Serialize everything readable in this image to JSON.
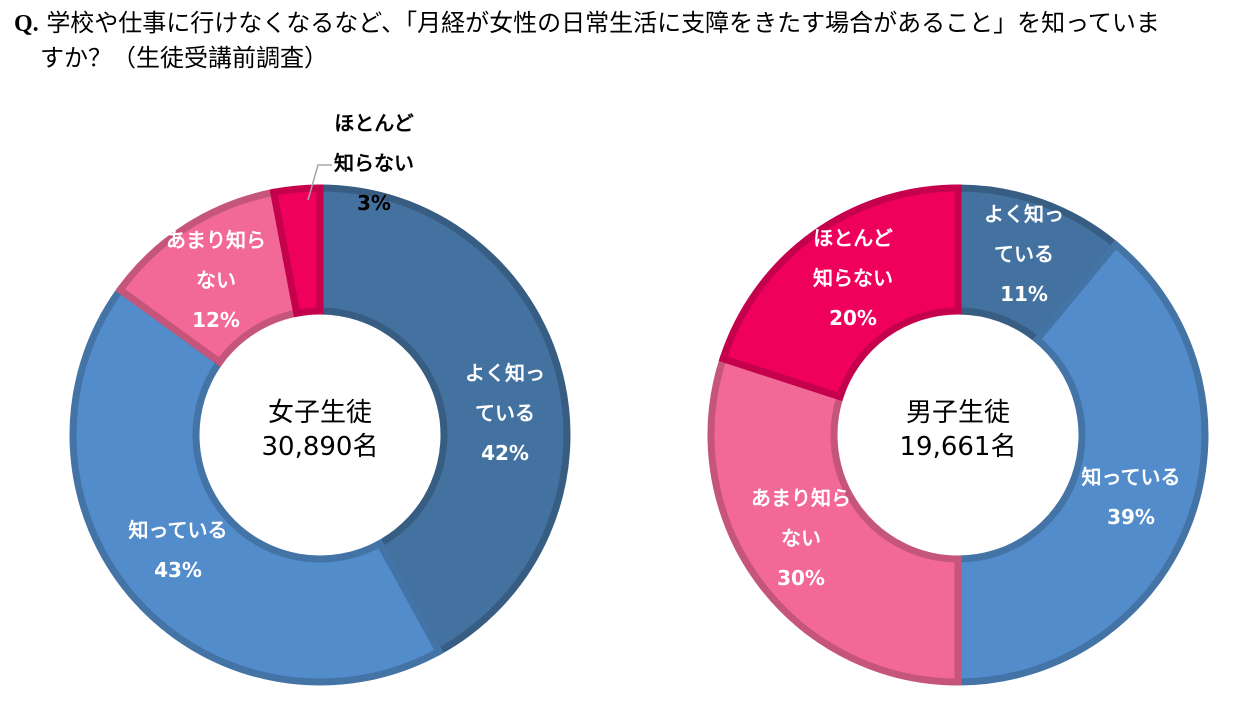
{
  "question": {
    "prefix": "Q.",
    "line1": "学校や仕事に行けなくなるなど、「月経が女性の日常生活に支障をきたす場合があること」を知っていま",
    "line2": "すか？（生徒受講前調査）"
  },
  "colors": {
    "yoku_shitteiru": "#4472a0",
    "shitteiru": "#538ccb",
    "amari_shiranai": "#f26896",
    "hotondo_shiranai": "#f0005d",
    "label_light": "#ffffff",
    "label_dark": "#000000"
  },
  "chart_data": [
    {
      "type": "pie",
      "donut": true,
      "center_label": [
        "女子生徒",
        "30,890名"
      ],
      "slices": [
        {
          "key": "yoku_shitteiru",
          "label": [
            "よく知っ",
            "ている"
          ],
          "value": 42,
          "value_label": "42%"
        },
        {
          "key": "shitteiru",
          "label": [
            "知っている"
          ],
          "value": 43,
          "value_label": "43%"
        },
        {
          "key": "amari_shiranai",
          "label": [
            "あまり知ら",
            "ない"
          ],
          "value": 12,
          "value_label": "12%"
        },
        {
          "key": "hotondo_shiranai",
          "label": [
            "ほとんど",
            "知らない"
          ],
          "value": 3,
          "value_label": "3%"
        }
      ]
    },
    {
      "type": "pie",
      "donut": true,
      "center_label": [
        "男子生徒",
        "19,661名"
      ],
      "slices": [
        {
          "key": "yoku_shitteiru",
          "label": [
            "よく知っ",
            "ている"
          ],
          "value": 11,
          "value_label": "11%"
        },
        {
          "key": "shitteiru",
          "label": [
            "知っている"
          ],
          "value": 39,
          "value_label": "39%"
        },
        {
          "key": "amari_shiranai",
          "label": [
            "あまり知ら",
            "ない"
          ],
          "value": 30,
          "value_label": "30%"
        },
        {
          "key": "hotondo_shiranai",
          "label": [
            "ほとんど",
            "知らない"
          ],
          "value": 20,
          "value_label": "20%"
        }
      ]
    }
  ]
}
